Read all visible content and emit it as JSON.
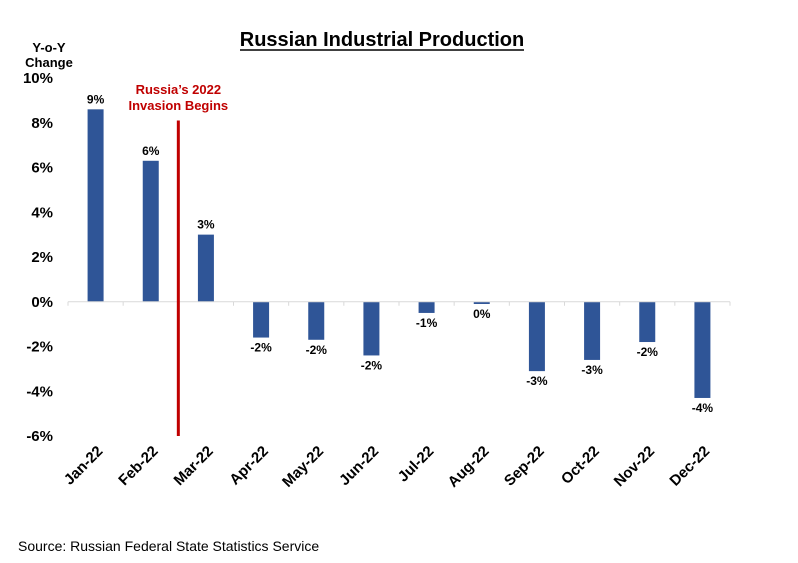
{
  "chart_data": {
    "type": "bar",
    "title": "Russian Industrial Production",
    "ylabel_line1": "Y-o-Y",
    "ylabel_line2": "Change",
    "xlabel": "",
    "ylim": [
      -6,
      10
    ],
    "yticks": [
      -6,
      -4,
      -2,
      0,
      2,
      4,
      6,
      8,
      10
    ],
    "ytick_labels": [
      "-6%",
      "-4%",
      "-2%",
      "0%",
      "2%",
      "4%",
      "6%",
      "8%",
      "10%"
    ],
    "categories": [
      "Jan-22",
      "Feb-22",
      "Mar-22",
      "Apr-22",
      "May-22",
      "Jun-22",
      "Jul-22",
      "Aug-22",
      "Sep-22",
      "Oct-22",
      "Nov-22",
      "Dec-22"
    ],
    "values": [
      8.6,
      6.3,
      3.0,
      -1.6,
      -1.7,
      -2.4,
      -0.5,
      -0.1,
      -3.1,
      -2.6,
      -1.8,
      -4.3
    ],
    "data_labels": [
      "9%",
      "6%",
      "3%",
      "-2%",
      "-2%",
      "-2%",
      "-1%",
      "0%",
      "-3%",
      "-3%",
      "-2%",
      "-4%"
    ],
    "bar_color": "#2F5597",
    "annotation": {
      "line1": "Russia’s 2022",
      "line2": "Invasion Begins",
      "color": "#C00000",
      "between": [
        "Feb-22",
        "Mar-22"
      ]
    },
    "grid": false,
    "legend": "none"
  },
  "source": "Source: Russian Federal State Statistics Service"
}
